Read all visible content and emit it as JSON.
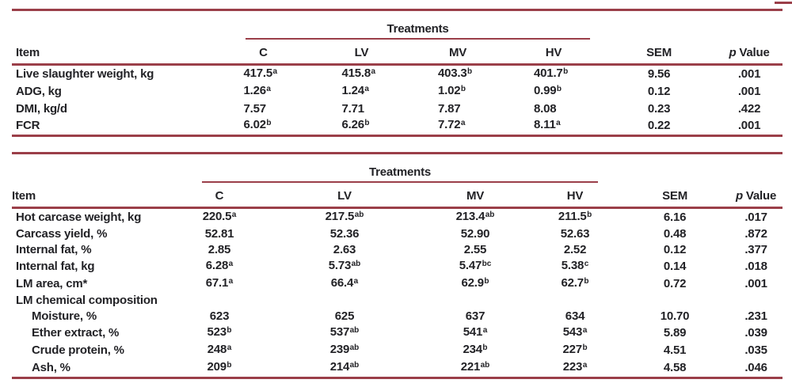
{
  "page": {
    "rule_color": "#9b3f49",
    "text_color": "#222226"
  },
  "tables": [
    {
      "name": "growth-performance",
      "treatments_label": "Treatments",
      "columns": {
        "item": "Item",
        "treatments": [
          "C",
          "LV",
          "MV",
          "HV"
        ],
        "sem": "SEM",
        "p_italic": "p",
        "p_rest": "Value"
      },
      "rows": [
        {
          "item": "Live slaughter weight, kg",
          "indent": false,
          "section": false,
          "cells": [
            [
              "417.5",
              "a"
            ],
            [
              "415.8",
              "a"
            ],
            [
              "403.3",
              "b"
            ],
            [
              "401.7",
              "b"
            ],
            [
              "9.56",
              ""
            ],
            [
              ".001",
              ""
            ]
          ]
        },
        {
          "item": "ADG, kg",
          "indent": false,
          "section": false,
          "cells": [
            [
              "1.26",
              "a"
            ],
            [
              "1.24",
              "a"
            ],
            [
              "1.02",
              "b"
            ],
            [
              "0.99",
              "b"
            ],
            [
              "0.12",
              ""
            ],
            [
              ".001",
              ""
            ]
          ]
        },
        {
          "item": "DMI, kg/d",
          "indent": false,
          "section": false,
          "cells": [
            [
              "7.57",
              ""
            ],
            [
              "7.71",
              ""
            ],
            [
              "7.87",
              ""
            ],
            [
              "8.08",
              ""
            ],
            [
              "0.23",
              ""
            ],
            [
              ".422",
              ""
            ]
          ]
        },
        {
          "item": "FCR",
          "indent": false,
          "section": false,
          "cells": [
            [
              "6.02",
              "b"
            ],
            [
              "6.26",
              "b"
            ],
            [
              "7.72",
              "a"
            ],
            [
              "8.11",
              "a"
            ],
            [
              "0.22",
              ""
            ],
            [
              ".001",
              ""
            ]
          ]
        }
      ]
    },
    {
      "name": "carcass-characteristics",
      "treatments_label": "Treatments",
      "columns": {
        "item": "Item",
        "treatments": [
          "C",
          "LV",
          "MV",
          "HV"
        ],
        "sem": "SEM",
        "p_italic": "p",
        "p_rest": "Value"
      },
      "rows": [
        {
          "item": "Hot carcase weight, kg",
          "indent": false,
          "section": false,
          "cells": [
            [
              "220.5",
              "a"
            ],
            [
              "217.5",
              "ab"
            ],
            [
              "213.4",
              "ab"
            ],
            [
              "211.5",
              "b"
            ],
            [
              "6.16",
              ""
            ],
            [
              ".017",
              ""
            ]
          ]
        },
        {
          "item": "Carcass yield, %",
          "indent": false,
          "section": false,
          "cells": [
            [
              "52.81",
              ""
            ],
            [
              "52.36",
              ""
            ],
            [
              "52.90",
              ""
            ],
            [
              "52.63",
              ""
            ],
            [
              "0.48",
              ""
            ],
            [
              ".872",
              ""
            ]
          ]
        },
        {
          "item": "Internal fat, %",
          "indent": false,
          "section": false,
          "cells": [
            [
              "2.85",
              ""
            ],
            [
              "2.63",
              ""
            ],
            [
              "2.55",
              ""
            ],
            [
              "2.52",
              ""
            ],
            [
              "0.12",
              ""
            ],
            [
              ".377",
              ""
            ]
          ]
        },
        {
          "item": "Internal fat, kg",
          "indent": false,
          "section": false,
          "cells": [
            [
              "6.28",
              "a"
            ],
            [
              "5.73",
              "ab"
            ],
            [
              "5.47",
              "bc"
            ],
            [
              "5.38",
              "c"
            ],
            [
              "0.14",
              ""
            ],
            [
              ".018",
              ""
            ]
          ]
        },
        {
          "item": "LM area, cm*",
          "indent": false,
          "section": false,
          "cells": [
            [
              "67.1",
              "a"
            ],
            [
              "66.4",
              "a"
            ],
            [
              "62.9",
              "b"
            ],
            [
              "62.7",
              "b"
            ],
            [
              "0.72",
              ""
            ],
            [
              ".001",
              ""
            ]
          ]
        },
        {
          "item": "LM chemical composition",
          "indent": false,
          "section": true,
          "cells": [
            [
              "",
              ""
            ],
            [
              "",
              ""
            ],
            [
              "",
              ""
            ],
            [
              "",
              ""
            ],
            [
              "",
              ""
            ],
            [
              "",
              ""
            ]
          ]
        },
        {
          "item": "Moisture, %",
          "indent": true,
          "section": false,
          "cells": [
            [
              "623",
              ""
            ],
            [
              "625",
              ""
            ],
            [
              "637",
              ""
            ],
            [
              "634",
              ""
            ],
            [
              "10.70",
              ""
            ],
            [
              ".231",
              ""
            ]
          ]
        },
        {
          "item": "Ether extract, %",
          "indent": true,
          "section": false,
          "cells": [
            [
              "523",
              "b"
            ],
            [
              "537",
              "ab"
            ],
            [
              "541",
              "a"
            ],
            [
              "543",
              "a"
            ],
            [
              "5.89",
              ""
            ],
            [
              ".039",
              ""
            ]
          ]
        },
        {
          "item": "Crude protein, %",
          "indent": true,
          "section": false,
          "cells": [
            [
              "248",
              "a"
            ],
            [
              "239",
              "ab"
            ],
            [
              "234",
              "b"
            ],
            [
              "227",
              "b"
            ],
            [
              "4.51",
              ""
            ],
            [
              ".035",
              ""
            ]
          ]
        },
        {
          "item": "Ash, %",
          "indent": true,
          "section": false,
          "cells": [
            [
              "209",
              "b"
            ],
            [
              "214",
              "ab"
            ],
            [
              "221",
              "ab"
            ],
            [
              "223",
              "a"
            ],
            [
              "4.58",
              ""
            ],
            [
              ".046",
              ""
            ]
          ]
        }
      ]
    }
  ]
}
